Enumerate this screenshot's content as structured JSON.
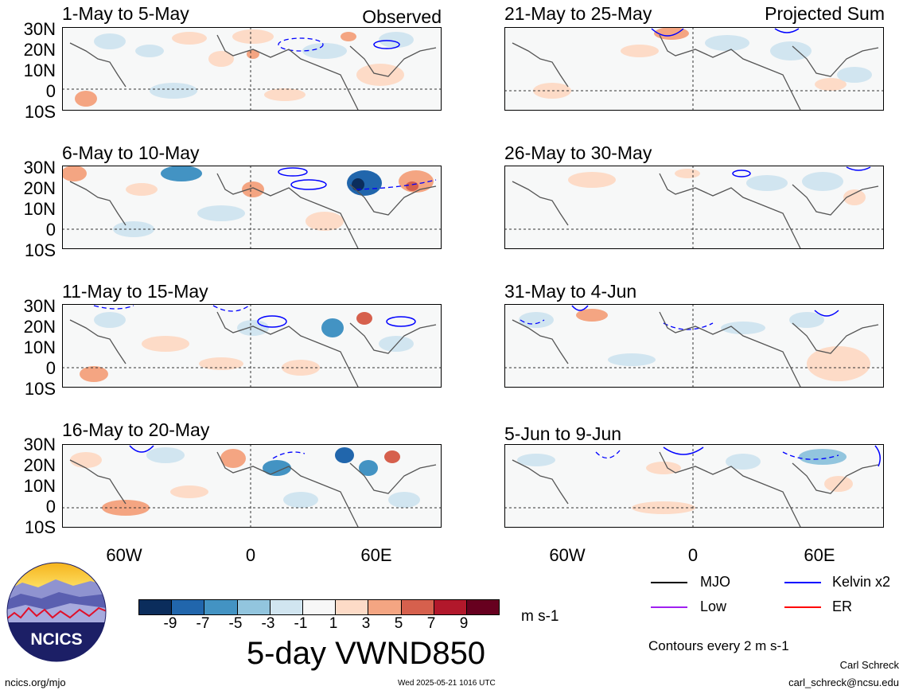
{
  "header": {
    "observed_label": "Observed",
    "projected_label": "Projected Sum"
  },
  "panels": [
    {
      "label": "1-May to 5-May"
    },
    {
      "label": "6-May to 10-May"
    },
    {
      "label": "11-May to 15-May"
    },
    {
      "label": "16-May to 20-May"
    },
    {
      "label": "21-May to 25-May"
    },
    {
      "label": "26-May to 30-May"
    },
    {
      "label": "31-May to 4-Jun"
    },
    {
      "label": "5-Jun to 9-Jun"
    }
  ],
  "lat_labels": [
    "30N",
    "20N",
    "10N",
    "0",
    "10S"
  ],
  "lon_labels": [
    "60W",
    "0",
    "60E"
  ],
  "colorbar": {
    "ticks": [
      "-9",
      "-7",
      "-5",
      "-3",
      "-1",
      "1",
      "3",
      "5",
      "7",
      "9"
    ],
    "colors": [
      "#0b2d5c",
      "#2166ac",
      "#4393c3",
      "#92c5de",
      "#d1e5f0",
      "#f7f7f7",
      "#fddbc7",
      "#f4a582",
      "#d6604d",
      "#b2182b",
      "#67001f"
    ],
    "units": "m s-1",
    "title": "5-day VWND850"
  },
  "legend": {
    "items": [
      {
        "label": "MJO",
        "color": "#000000"
      },
      {
        "label": "Kelvin x2",
        "color": "#0000ff"
      },
      {
        "label": "Low",
        "color": "#a020f0"
      },
      {
        "label": "ER",
        "color": "#ff0000"
      }
    ],
    "contours_note": "Contours every 2 m s-1"
  },
  "footer": {
    "site": "ncics.org/mjo",
    "timestamp": "Wed 2025-05-21 1016 UTC",
    "author": "Carl Schreck",
    "email": "carl_schreck@ncsu.edu"
  },
  "logo": {
    "text": "NCICS"
  }
}
